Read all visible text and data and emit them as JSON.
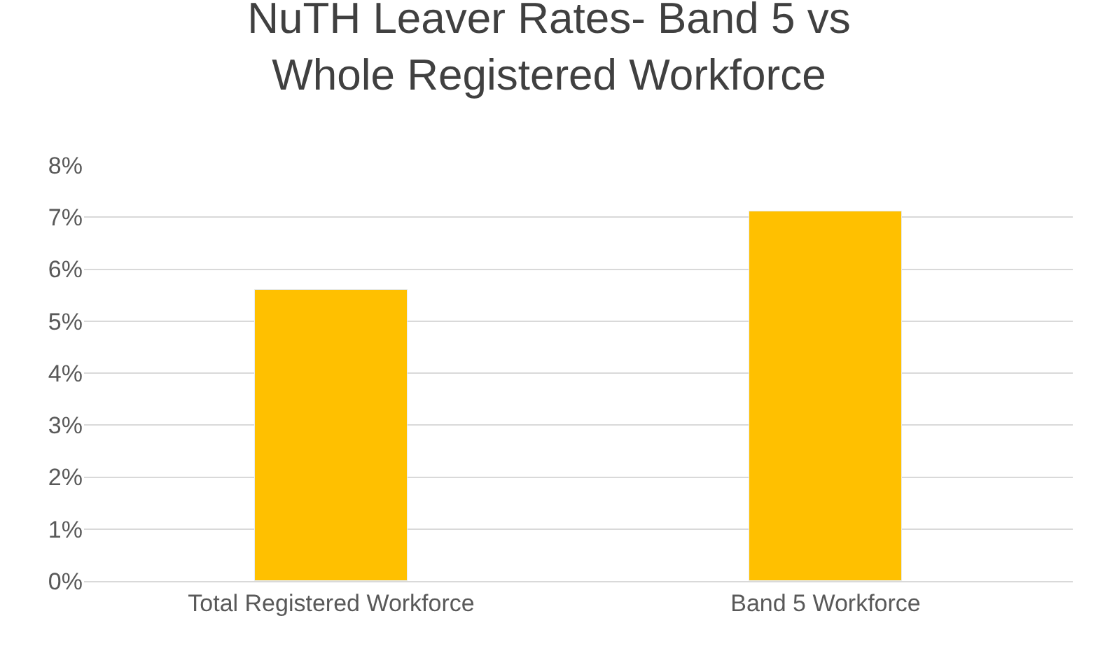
{
  "chart_data": {
    "type": "bar",
    "title": "NuTH Leaver Rates- Band 5 vs\nWhole Registered Workforce",
    "categories": [
      "Total Registered Workforce",
      "Band 5 Workforce"
    ],
    "values": [
      5.6,
      7.1
    ],
    "color": "#ffc000",
    "ylim": [
      0,
      8
    ],
    "yticks": [
      {
        "value": 0,
        "label": "0%"
      },
      {
        "value": 1,
        "label": "1%"
      },
      {
        "value": 2,
        "label": "2%"
      },
      {
        "value": 3,
        "label": "3%"
      },
      {
        "value": 4,
        "label": "4%"
      },
      {
        "value": 5,
        "label": "5%"
      },
      {
        "value": 6,
        "label": "6%"
      },
      {
        "value": 7,
        "label": "7%"
      },
      {
        "value": 8,
        "label": "8%"
      }
    ],
    "grid": "y"
  }
}
